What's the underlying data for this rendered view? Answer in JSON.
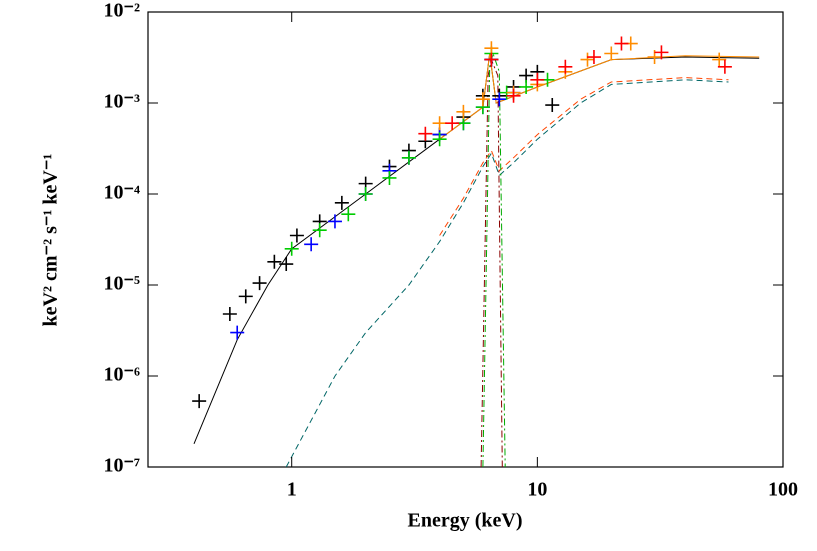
{
  "chart_data": {
    "type": "scatter",
    "x_label": "Energy (keV)",
    "y_label": "keV² cm⁻² s⁻¹ keV⁻¹",
    "log_x": true,
    "log_y": true,
    "xlim": [
      0.26,
      100
    ],
    "ylim": [
      1e-07,
      0.01
    ],
    "xticks": [
      1,
      10,
      100
    ],
    "yticks": [
      {
        "value": 1e-07,
        "label": "10⁻⁷"
      },
      {
        "value": 1e-06,
        "label": "10⁻⁶"
      },
      {
        "value": 1e-05,
        "label": "10⁻⁵"
      },
      {
        "value": 0.0001,
        "label": "10⁻⁴"
      },
      {
        "value": 0.001,
        "label": "10⁻³"
      },
      {
        "value": 0.01,
        "label": "10⁻²"
      }
    ],
    "series": [
      {
        "color": "#000000",
        "x": [
          0.42,
          0.56,
          0.65,
          0.74,
          0.85,
          0.95,
          1.05,
          1.3,
          1.6,
          2,
          2.5,
          3,
          3.5,
          4,
          5,
          6,
          6.5,
          7,
          8,
          9,
          10,
          11.5
        ],
        "values": [
          5.3e-07,
          4.8e-06,
          7.5e-06,
          1.05e-05,
          1.8e-05,
          1.7e-05,
          3.5e-05,
          5e-05,
          8e-05,
          0.00013,
          0.0002,
          0.0003,
          0.00038,
          0.00045,
          0.0007,
          0.0012,
          0.003,
          0.0012,
          0.0015,
          0.002,
          0.0022,
          0.00095
        ]
      },
      {
        "color": "#0000ff",
        "x": [
          0.6,
          1.2,
          1.5,
          2,
          2.5,
          3,
          4,
          5,
          6,
          6.5,
          7,
          8
        ],
        "values": [
          3e-06,
          2.8e-05,
          5e-05,
          0.0001,
          0.00018,
          0.00025,
          0.00045,
          0.0006,
          0.0009,
          0.003,
          0.0011,
          0.0013
        ]
      },
      {
        "color": "#00cc00",
        "x": [
          1.0,
          1.3,
          1.7,
          2,
          2.5,
          3,
          4,
          5,
          6,
          6.5,
          7.5,
          9,
          11
        ],
        "values": [
          2.5e-05,
          4e-05,
          6e-05,
          0.0001,
          0.00015,
          0.00025,
          0.0004,
          0.0006,
          0.0009,
          0.0035,
          0.0013,
          0.0015,
          0.0018
        ]
      },
      {
        "color": "#ff8c00",
        "x": [
          4,
          5,
          6,
          6.5,
          8,
          10,
          13,
          16,
          20,
          24,
          30,
          55
        ],
        "values": [
          0.0006,
          0.0008,
          0.0011,
          0.004,
          0.0013,
          0.0016,
          0.0022,
          0.003,
          0.0035,
          0.0045,
          0.0032,
          0.003
        ]
      },
      {
        "color": "#ff0000",
        "x": [
          3.5,
          4.5,
          6.5,
          8,
          10,
          13,
          17,
          22,
          32,
          58
        ],
        "values": [
          0.00046,
          0.0006,
          0.003,
          0.0012,
          0.0018,
          0.0025,
          0.0032,
          0.0045,
          0.0036,
          0.0025
        ]
      }
    ],
    "lines": [
      {
        "color": "#000000",
        "style": "solid",
        "x": [
          0.4,
          0.6,
          0.8,
          1,
          2,
          4,
          6,
          6.4,
          6.8,
          10,
          20,
          40,
          80
        ],
        "values": [
          1.8e-07,
          2.5e-06,
          1e-05,
          2.5e-05,
          0.0001,
          0.0004,
          0.0009,
          0.0035,
          0.001,
          0.0015,
          0.003,
          0.0032,
          0.0031
        ]
      },
      {
        "color": "#ff8c00",
        "style": "solid",
        "x": [
          4,
          6,
          6.4,
          6.8,
          10,
          20,
          40,
          80
        ],
        "values": [
          0.0004,
          0.0009,
          0.0035,
          0.001,
          0.0015,
          0.003,
          0.0033,
          0.0032
        ]
      },
      {
        "color": "#006666",
        "style": "dashed",
        "x": [
          0.95,
          1.5,
          2,
          3,
          4,
          5,
          6,
          6.5,
          7,
          8,
          10,
          15,
          20,
          40,
          60
        ],
        "values": [
          1e-07,
          1e-06,
          3e-06,
          1e-05,
          3e-05,
          8e-05,
          0.0002,
          0.00028,
          0.00016,
          0.00022,
          0.0004,
          0.001,
          0.0016,
          0.0018,
          0.0017
        ]
      },
      {
        "color": "#ff4500",
        "style": "dashed",
        "x": [
          4,
          5,
          6,
          6.5,
          7,
          8,
          10,
          15,
          20,
          40,
          60
        ],
        "values": [
          3.5e-05,
          9e-05,
          0.00022,
          0.0003,
          0.00018,
          0.00025,
          0.00045,
          0.0011,
          0.0017,
          0.0019,
          0.0018
        ]
      },
      {
        "color": "#8b0000",
        "style": "dashdot",
        "x": [
          5.9,
          6.3,
          6.5,
          6.9,
          7.2
        ],
        "values": [
          1e-07,
          0.002,
          0.003,
          0.002,
          1e-07
        ]
      },
      {
        "color": "#00aa00",
        "style": "dashdot",
        "x": [
          6.0,
          6.4,
          6.6,
          7.0,
          7.4
        ],
        "values": [
          1e-07,
          0.0025,
          0.0035,
          0.0022,
          1e-07
        ]
      }
    ]
  }
}
